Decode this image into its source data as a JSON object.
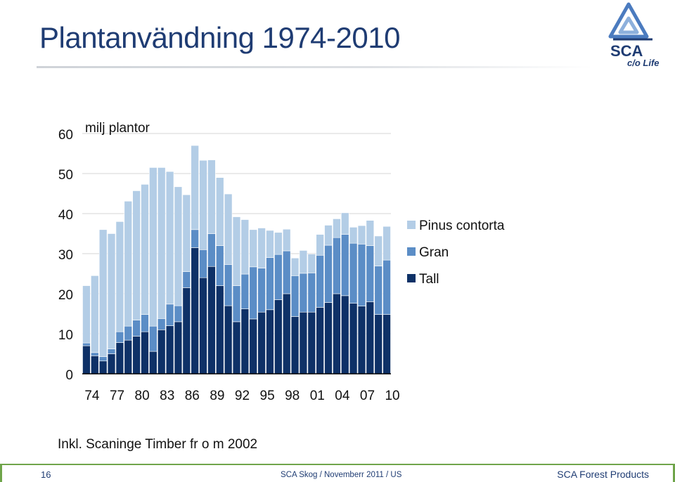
{
  "slide": {
    "title": "Plantanvändning 1974-2010",
    "note": "Inkl. Scaninge Timber fr o m 2002",
    "logo": {
      "brand": "SCA",
      "tagline": "c/o Life"
    }
  },
  "footer": {
    "page": "16",
    "center": "SCA Skog / Novemberr 2011 / US",
    "right": "SCA Forest Products",
    "accent_color": "#6fa54a"
  },
  "chart_data": {
    "type": "bar",
    "stacked": true,
    "title": "",
    "ylabel": "milj plantor",
    "xlabel": "",
    "ylim": [
      0,
      60
    ],
    "yticks": [
      0,
      10,
      20,
      30,
      40,
      50,
      60
    ],
    "grid": true,
    "legend_position": "right",
    "x": [
      "1974",
      "1975",
      "1976",
      "1977",
      "1978",
      "1979",
      "1980",
      "1981",
      "1982",
      "1983",
      "1984",
      "1985",
      "1986",
      "1987",
      "1988",
      "1989",
      "1990",
      "1991",
      "1992",
      "1993",
      "1994",
      "1995",
      "1996",
      "1997",
      "1998",
      "1999",
      "2000",
      "2001",
      "2002",
      "2003",
      "2004",
      "2005",
      "2006",
      "2007",
      "2008",
      "2009",
      "2010"
    ],
    "tick_labels": [
      "74",
      "",
      "",
      "77",
      "",
      "",
      "80",
      "",
      "",
      "83",
      "",
      "",
      "86",
      "",
      "",
      "89",
      "",
      "",
      "92",
      "",
      "",
      "95",
      "",
      "",
      "98",
      "",
      "",
      "01",
      "",
      "",
      "04",
      "",
      "",
      "07",
      "",
      "",
      "10"
    ],
    "series": [
      {
        "name": "Tall",
        "color": "#0e3167",
        "values": [
          7,
          4.5,
          3.2,
          5,
          7.8,
          8.4,
          9.4,
          10.5,
          5.6,
          11,
          12,
          13,
          21.5,
          31.5,
          24,
          26.8,
          22,
          17,
          13,
          16.2,
          13.7,
          15.4,
          16,
          18.5,
          20,
          14.3,
          15.4,
          15.4,
          16.6,
          17.8,
          20,
          19.5,
          17.6,
          16.9,
          18,
          14.8,
          14.8
        ]
      },
      {
        "name": "Gran",
        "color": "#5b8dc6",
        "values": [
          0.7,
          0.8,
          1.1,
          1.2,
          2.7,
          3.5,
          4,
          4.3,
          6.3,
          2.8,
          5.4,
          4,
          4,
          4.5,
          7,
          8.2,
          10,
          10.3,
          9,
          8.7,
          13,
          11,
          13,
          11.3,
          10.7,
          10.2,
          9.7,
          9.8,
          13,
          14.3,
          14,
          15.3,
          15,
          15.5,
          14,
          12.1,
          13.6
        ]
      },
      {
        "name": "Pinus contorta",
        "color": "#b3cde6",
        "values": [
          14.3,
          19.2,
          31.7,
          28.8,
          27.5,
          31.2,
          32.3,
          32.5,
          39.6,
          37.7,
          33.1,
          29.7,
          19.2,
          21,
          22.3,
          18.4,
          17,
          17.6,
          17.2,
          13.6,
          9.3,
          10,
          6.8,
          5.5,
          5.4,
          4.4,
          5.7,
          4.7,
          5.2,
          5,
          4.7,
          5.4,
          4,
          4.6,
          6.3,
          7.5,
          8.4
        ]
      }
    ]
  }
}
